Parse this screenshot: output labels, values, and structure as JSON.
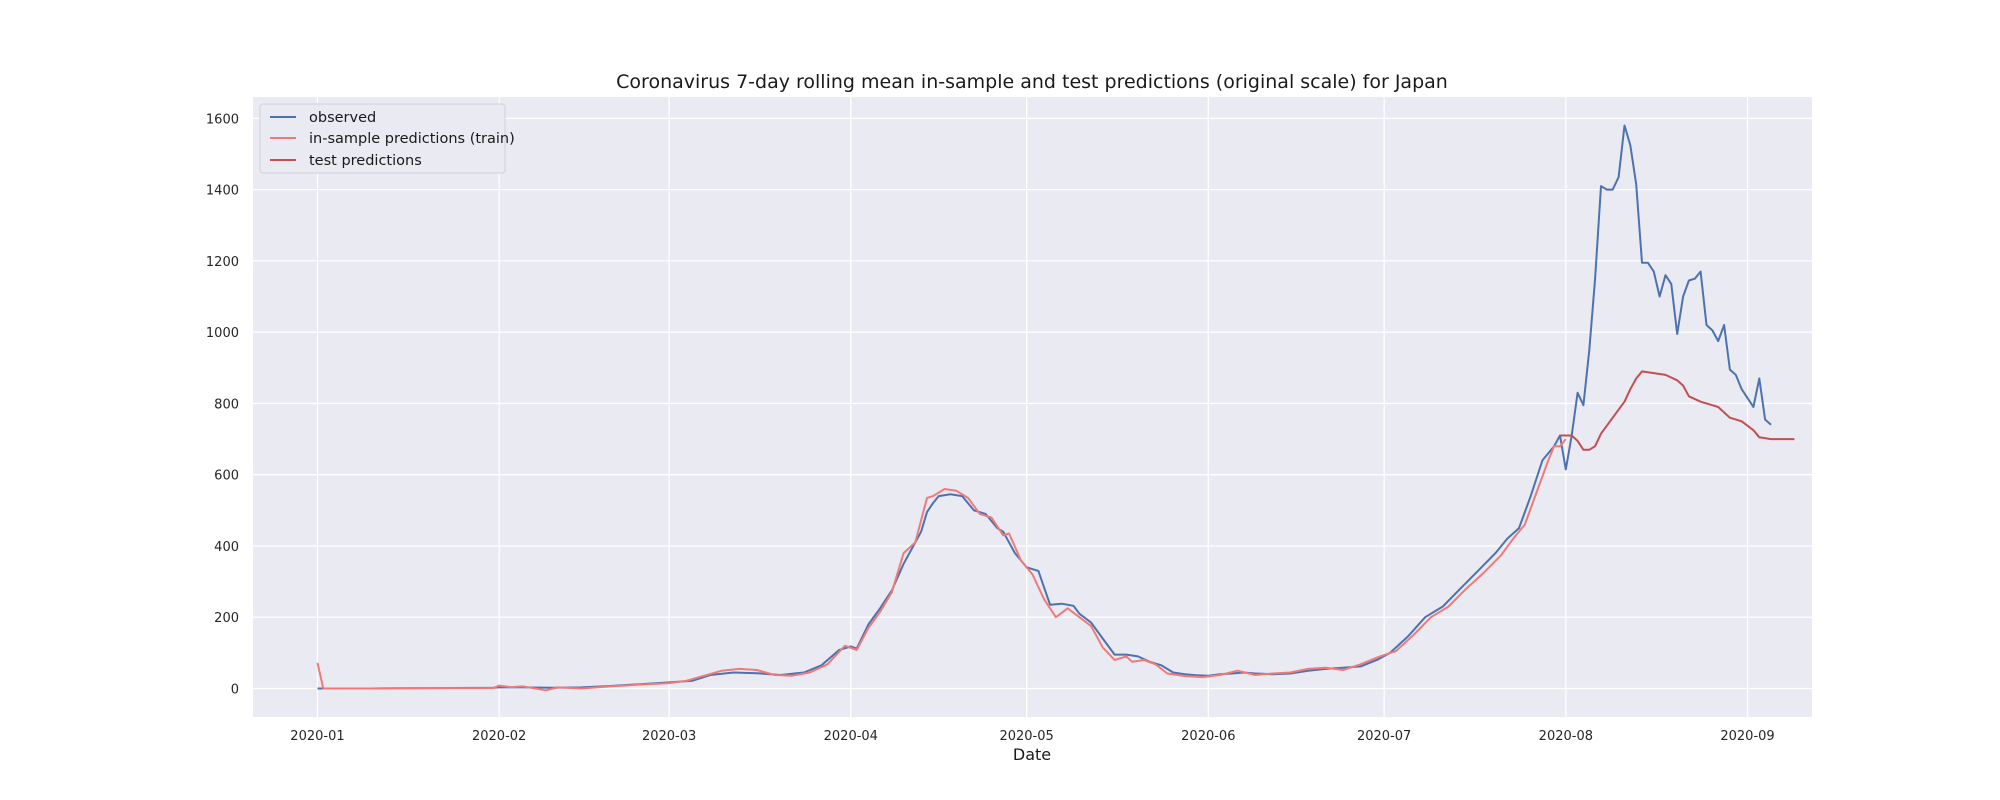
{
  "chart_data": {
    "type": "line",
    "title": "Coronavirus 7-day rolling mean in-sample and test predictions (original scale) for Japan",
    "xlabel": "Date",
    "ylabel": "",
    "xlim": [
      "2019-12-21",
      "2020-09-12"
    ],
    "ylim": [
      -80,
      1660
    ],
    "x_ticks": [
      "2020-01",
      "2020-02",
      "2020-03",
      "2020-04",
      "2020-05",
      "2020-06",
      "2020-07",
      "2020-08",
      "2020-09"
    ],
    "y_ticks": [
      0,
      200,
      400,
      600,
      800,
      1000,
      1200,
      1400,
      1600
    ],
    "grid": true,
    "legend_position": "top-left",
    "colors": {
      "background": "#eaeaf2",
      "grid": "#ffffff",
      "observed": "#4c72b0",
      "train": "#f07a7a",
      "test": "#c44e52"
    },
    "series": [
      {
        "name": "observed",
        "color": "#4c72b0",
        "points": [
          [
            "2020-01-01",
            0
          ],
          [
            "2020-01-10",
            0
          ],
          [
            "2020-01-20",
            1
          ],
          [
            "2020-01-31",
            2
          ],
          [
            "2020-02-01",
            3
          ],
          [
            "2020-02-05",
            3
          ],
          [
            "2020-02-10",
            2
          ],
          [
            "2020-02-15",
            3
          ],
          [
            "2020-02-20",
            7
          ],
          [
            "2020-02-25",
            12
          ],
          [
            "2020-03-01",
            17
          ],
          [
            "2020-03-05",
            22
          ],
          [
            "2020-03-08",
            38
          ],
          [
            "2020-03-12",
            45
          ],
          [
            "2020-03-16",
            43
          ],
          [
            "2020-03-20",
            38
          ],
          [
            "2020-03-24",
            45
          ],
          [
            "2020-03-27",
            65
          ],
          [
            "2020-03-30",
            108
          ],
          [
            "2020-04-01",
            118
          ],
          [
            "2020-04-02",
            112
          ],
          [
            "2020-04-04",
            180
          ],
          [
            "2020-04-06",
            225
          ],
          [
            "2020-04-08",
            275
          ],
          [
            "2020-04-10",
            350
          ],
          [
            "2020-04-12",
            410
          ],
          [
            "2020-04-13",
            440
          ],
          [
            "2020-04-14",
            495
          ],
          [
            "2020-04-15",
            520
          ],
          [
            "2020-04-16",
            540
          ],
          [
            "2020-04-18",
            545
          ],
          [
            "2020-04-20",
            540
          ],
          [
            "2020-04-22",
            500
          ],
          [
            "2020-04-24",
            490
          ],
          [
            "2020-04-26",
            450
          ],
          [
            "2020-04-27",
            440
          ],
          [
            "2020-04-29",
            380
          ],
          [
            "2020-05-01",
            340
          ],
          [
            "2020-05-03",
            330
          ],
          [
            "2020-05-05",
            235
          ],
          [
            "2020-05-07",
            238
          ],
          [
            "2020-05-09",
            232
          ],
          [
            "2020-05-10",
            210
          ],
          [
            "2020-05-12",
            185
          ],
          [
            "2020-05-14",
            140
          ],
          [
            "2020-05-16",
            95
          ],
          [
            "2020-05-18",
            95
          ],
          [
            "2020-05-20",
            90
          ],
          [
            "2020-05-22",
            75
          ],
          [
            "2020-05-24",
            65
          ],
          [
            "2020-05-26",
            45
          ],
          [
            "2020-05-28",
            40
          ],
          [
            "2020-05-30",
            37
          ],
          [
            "2020-06-01",
            36
          ],
          [
            "2020-06-03",
            40
          ],
          [
            "2020-06-05",
            42
          ],
          [
            "2020-06-07",
            45
          ],
          [
            "2020-06-09",
            42
          ],
          [
            "2020-06-12",
            40
          ],
          [
            "2020-06-15",
            42
          ],
          [
            "2020-06-18",
            50
          ],
          [
            "2020-06-21",
            55
          ],
          [
            "2020-06-24",
            58
          ],
          [
            "2020-06-27",
            62
          ],
          [
            "2020-06-30",
            82
          ],
          [
            "2020-07-02",
            100
          ],
          [
            "2020-07-05",
            145
          ],
          [
            "2020-07-08",
            200
          ],
          [
            "2020-07-11",
            230
          ],
          [
            "2020-07-14",
            280
          ],
          [
            "2020-07-17",
            330
          ],
          [
            "2020-07-20",
            380
          ],
          [
            "2020-07-22",
            420
          ],
          [
            "2020-07-24",
            450
          ],
          [
            "2020-07-26",
            540
          ],
          [
            "2020-07-28",
            640
          ],
          [
            "2020-07-30",
            680
          ],
          [
            "2020-07-31",
            710
          ],
          [
            "2020-08-01",
            615
          ],
          [
            "2020-08-02",
            710
          ],
          [
            "2020-08-03",
            830
          ],
          [
            "2020-08-04",
            795
          ],
          [
            "2020-08-05",
            950
          ],
          [
            "2020-08-06",
            1150
          ],
          [
            "2020-08-07",
            1410
          ],
          [
            "2020-08-08",
            1400
          ],
          [
            "2020-08-09",
            1400
          ],
          [
            "2020-08-10",
            1435
          ],
          [
            "2020-08-11",
            1580
          ],
          [
            "2020-08-12",
            1525
          ],
          [
            "2020-08-13",
            1415
          ],
          [
            "2020-08-14",
            1195
          ],
          [
            "2020-08-15",
            1195
          ],
          [
            "2020-08-16",
            1170
          ],
          [
            "2020-08-17",
            1100
          ],
          [
            "2020-08-18",
            1160
          ],
          [
            "2020-08-19",
            1135
          ],
          [
            "2020-08-20",
            995
          ],
          [
            "2020-08-21",
            1100
          ],
          [
            "2020-08-22",
            1145
          ],
          [
            "2020-08-23",
            1150
          ],
          [
            "2020-08-24",
            1170
          ],
          [
            "2020-08-25",
            1020
          ],
          [
            "2020-08-26",
            1005
          ],
          [
            "2020-08-27",
            975
          ],
          [
            "2020-08-28",
            1020
          ],
          [
            "2020-08-29",
            895
          ],
          [
            "2020-08-30",
            880
          ],
          [
            "2020-08-31",
            840
          ],
          [
            "2020-09-02",
            790
          ],
          [
            "2020-09-03",
            870
          ],
          [
            "2020-09-04",
            755
          ],
          [
            "2020-09-05",
            740
          ]
        ]
      },
      {
        "name": "in-sample predictions (train)",
        "color": "#f07a7a",
        "points": [
          [
            "2020-01-01",
            72
          ],
          [
            "2020-01-02",
            0
          ],
          [
            "2020-01-10",
            0
          ],
          [
            "2020-01-20",
            1
          ],
          [
            "2020-01-31",
            1
          ],
          [
            "2020-02-01",
            8
          ],
          [
            "2020-02-03",
            4
          ],
          [
            "2020-02-05",
            6
          ],
          [
            "2020-02-09",
            -5
          ],
          [
            "2020-02-11",
            3
          ],
          [
            "2020-02-15",
            0
          ],
          [
            "2020-02-20",
            6
          ],
          [
            "2020-02-25",
            11
          ],
          [
            "2020-03-01",
            15
          ],
          [
            "2020-03-04",
            22
          ],
          [
            "2020-03-07",
            36
          ],
          [
            "2020-03-10",
            50
          ],
          [
            "2020-03-13",
            55
          ],
          [
            "2020-03-16",
            52
          ],
          [
            "2020-03-19",
            38
          ],
          [
            "2020-03-22",
            36
          ],
          [
            "2020-03-25",
            45
          ],
          [
            "2020-03-28",
            68
          ],
          [
            "2020-03-31",
            120
          ],
          [
            "2020-04-02",
            108
          ],
          [
            "2020-04-04",
            170
          ],
          [
            "2020-04-06",
            215
          ],
          [
            "2020-04-08",
            270
          ],
          [
            "2020-04-10",
            380
          ],
          [
            "2020-04-12",
            410
          ],
          [
            "2020-04-14",
            535
          ],
          [
            "2020-04-15",
            540
          ],
          [
            "2020-04-17",
            560
          ],
          [
            "2020-04-19",
            555
          ],
          [
            "2020-04-21",
            535
          ],
          [
            "2020-04-23",
            490
          ],
          [
            "2020-04-25",
            480
          ],
          [
            "2020-04-27",
            430
          ],
          [
            "2020-04-28",
            435
          ],
          [
            "2020-04-30",
            360
          ],
          [
            "2020-05-02",
            320
          ],
          [
            "2020-05-04",
            250
          ],
          [
            "2020-05-06",
            200
          ],
          [
            "2020-05-08",
            225
          ],
          [
            "2020-05-10",
            200
          ],
          [
            "2020-05-12",
            175
          ],
          [
            "2020-05-14",
            115
          ],
          [
            "2020-05-16",
            80
          ],
          [
            "2020-05-18",
            90
          ],
          [
            "2020-05-19",
            75
          ],
          [
            "2020-05-21",
            80
          ],
          [
            "2020-05-23",
            68
          ],
          [
            "2020-05-25",
            42
          ],
          [
            "2020-05-28",
            35
          ],
          [
            "2020-05-31",
            32
          ],
          [
            "2020-06-03",
            38
          ],
          [
            "2020-06-06",
            50
          ],
          [
            "2020-06-09",
            38
          ],
          [
            "2020-06-12",
            42
          ],
          [
            "2020-06-15",
            45
          ],
          [
            "2020-06-18",
            55
          ],
          [
            "2020-06-21",
            58
          ],
          [
            "2020-06-24",
            52
          ],
          [
            "2020-06-27",
            68
          ],
          [
            "2020-06-30",
            88
          ],
          [
            "2020-07-03",
            105
          ],
          [
            "2020-07-06",
            150
          ],
          [
            "2020-07-09",
            200
          ],
          [
            "2020-07-12",
            230
          ],
          [
            "2020-07-15",
            280
          ],
          [
            "2020-07-18",
            325
          ],
          [
            "2020-07-21",
            375
          ],
          [
            "2020-07-23",
            420
          ],
          [
            "2020-07-25",
            460
          ],
          [
            "2020-07-27",
            550
          ],
          [
            "2020-07-29",
            640
          ],
          [
            "2020-07-30",
            680
          ],
          [
            "2020-07-31",
            680
          ],
          [
            "2020-08-01",
            700
          ]
        ]
      },
      {
        "name": "test predictions",
        "color": "#c44e52",
        "points": [
          [
            "2020-07-31",
            710
          ],
          [
            "2020-08-02",
            710
          ],
          [
            "2020-08-03",
            695
          ],
          [
            "2020-08-04",
            670
          ],
          [
            "2020-08-05",
            670
          ],
          [
            "2020-08-06",
            680
          ],
          [
            "2020-08-07",
            715
          ],
          [
            "2020-08-09",
            760
          ],
          [
            "2020-08-11",
            805
          ],
          [
            "2020-08-12",
            840
          ],
          [
            "2020-08-13",
            870
          ],
          [
            "2020-08-14",
            890
          ],
          [
            "2020-08-16",
            885
          ],
          [
            "2020-08-18",
            880
          ],
          [
            "2020-08-20",
            865
          ],
          [
            "2020-08-21",
            850
          ],
          [
            "2020-08-22",
            820
          ],
          [
            "2020-08-24",
            805
          ],
          [
            "2020-08-26",
            795
          ],
          [
            "2020-08-27",
            790
          ],
          [
            "2020-08-29",
            760
          ],
          [
            "2020-08-31",
            750
          ],
          [
            "2020-09-02",
            725
          ],
          [
            "2020-09-03",
            705
          ],
          [
            "2020-09-05",
            700
          ],
          [
            "2020-09-07",
            700
          ],
          [
            "2020-09-09",
            700
          ]
        ]
      }
    ]
  }
}
